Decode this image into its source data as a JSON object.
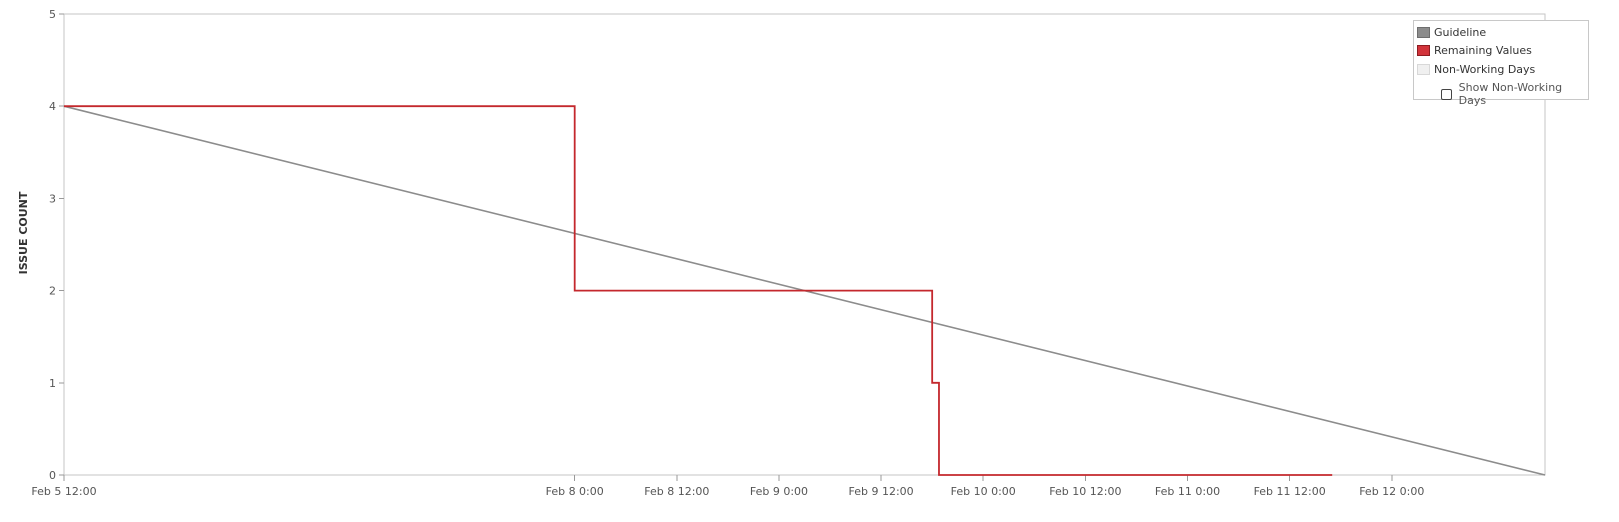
{
  "chart_data": {
    "type": "line",
    "title": "",
    "xlabel": "",
    "ylabel": "ISSUE COUNT",
    "ylim": [
      0,
      5
    ],
    "yticks": [
      "0",
      "1",
      "2",
      "3",
      "4",
      "5"
    ],
    "xlim": [
      "Feb 5 12:00",
      "Feb 12 18:00"
    ],
    "x_ticks": [
      {
        "label": "Feb 5 12:00",
        "hours": 0
      },
      {
        "label": "Feb 8 0:00",
        "hours": 60
      },
      {
        "label": "Feb 8 12:00",
        "hours": 72
      },
      {
        "label": "Feb 9 0:00",
        "hours": 84
      },
      {
        "label": "Feb 9 12:00",
        "hours": 96
      },
      {
        "label": "Feb 10 0:00",
        "hours": 108
      },
      {
        "label": "Feb 10 12:00",
        "hours": 120
      },
      {
        "label": "Feb 11 0:00",
        "hours": 132
      },
      {
        "label": "Feb 11 12:00",
        "hours": 144
      },
      {
        "label": "Feb 12 0:00",
        "hours": 156
      }
    ],
    "grid": false,
    "legend_position": "top-right",
    "series": [
      {
        "name": "Guideline",
        "color": "#8c8c8c",
        "step": false,
        "points": [
          {
            "hours": 0,
            "y": 4
          },
          {
            "hours": 174,
            "y": 0
          }
        ]
      },
      {
        "name": "Remaining Values",
        "color": "#c4282d",
        "step": true,
        "points": [
          {
            "hours": 0,
            "y": 4
          },
          {
            "hours": 60,
            "y": 2
          },
          {
            "hours": 102,
            "y": 1
          },
          {
            "hours": 102.8,
            "y": 0
          },
          {
            "hours": 149,
            "y": 0
          }
        ]
      }
    ],
    "legend": {
      "guideline": {
        "label": "Guideline",
        "color": "#8c8c8c"
      },
      "remaining": {
        "label": "Remaining Values",
        "color": "#d2343b"
      },
      "nonworking": {
        "label": "Non-Working Days",
        "color": "#f0f0f0"
      },
      "show_nonworking": {
        "label": "Show Non-Working Days",
        "checked": false
      }
    }
  }
}
